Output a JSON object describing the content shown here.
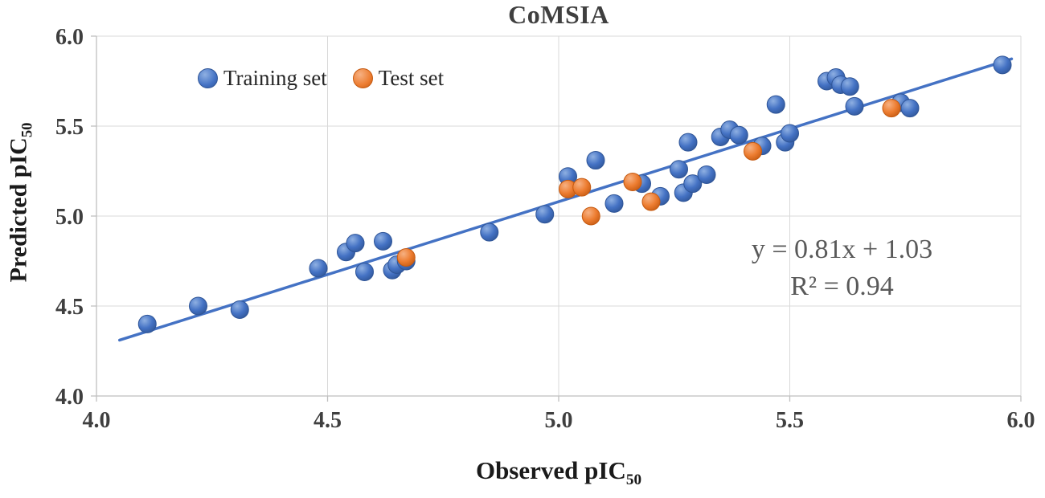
{
  "chart": {
    "title": "CoMSIA",
    "xlabel_main": "Observed pIC",
    "xlabel_sub": "50",
    "ylabel_main": "Predicted pIC",
    "ylabel_sub": "50",
    "legend": {
      "training": "Training set",
      "test": "Test set"
    },
    "equation_line1": "y = 0.81x + 1.03",
    "equation_line2": "R² = 0.94"
  },
  "chart_data": {
    "type": "scatter",
    "title": "CoMSIA",
    "xlabel": "Observed pIC50",
    "ylabel": "Predicted pIC50",
    "xlim": [
      4.0,
      6.0
    ],
    "ylim": [
      4.0,
      6.0
    ],
    "xticks": [
      4.0,
      4.5,
      5.0,
      5.5,
      6.0
    ],
    "yticks": [
      4.0,
      4.5,
      5.0,
      5.5,
      6.0
    ],
    "grid": true,
    "legend_position": "inside-top-left",
    "colors": {
      "training": "#4472C4",
      "test": "#ED7D31",
      "trendline": "#4472C4",
      "gridline": "#D9D9D9",
      "axisline": "#BFBFBF",
      "annotation": "#595959"
    },
    "series": [
      {
        "name": "Training set",
        "color": "#4472C4",
        "points": [
          [
            4.11,
            4.4
          ],
          [
            4.22,
            4.5
          ],
          [
            4.31,
            4.48
          ],
          [
            4.48,
            4.71
          ],
          [
            4.54,
            4.8
          ],
          [
            4.56,
            4.85
          ],
          [
            4.58,
            4.69
          ],
          [
            4.62,
            4.86
          ],
          [
            4.64,
            4.7
          ],
          [
            4.65,
            4.73
          ],
          [
            4.67,
            4.75
          ],
          [
            4.85,
            4.91
          ],
          [
            4.97,
            5.01
          ],
          [
            5.02,
            5.22
          ],
          [
            5.08,
            5.31
          ],
          [
            5.12,
            5.07
          ],
          [
            5.18,
            5.18
          ],
          [
            5.22,
            5.11
          ],
          [
            5.26,
            5.26
          ],
          [
            5.27,
            5.13
          ],
          [
            5.28,
            5.41
          ],
          [
            5.29,
            5.18
          ],
          [
            5.32,
            5.23
          ],
          [
            5.35,
            5.44
          ],
          [
            5.37,
            5.48
          ],
          [
            5.39,
            5.45
          ],
          [
            5.44,
            5.39
          ],
          [
            5.47,
            5.62
          ],
          [
            5.49,
            5.41
          ],
          [
            5.5,
            5.46
          ],
          [
            5.58,
            5.75
          ],
          [
            5.6,
            5.77
          ],
          [
            5.61,
            5.73
          ],
          [
            5.63,
            5.72
          ],
          [
            5.64,
            5.61
          ],
          [
            5.74,
            5.63
          ],
          [
            5.76,
            5.6
          ],
          [
            5.96,
            5.84
          ]
        ]
      },
      {
        "name": "Test set",
        "color": "#ED7D31",
        "points": [
          [
            4.67,
            4.77
          ],
          [
            5.02,
            5.15
          ],
          [
            5.05,
            5.16
          ],
          [
            5.07,
            5.0
          ],
          [
            5.16,
            5.19
          ],
          [
            5.2,
            5.08
          ],
          [
            5.42,
            5.36
          ],
          [
            5.72,
            5.6
          ]
        ]
      }
    ],
    "trendline": {
      "slope": 0.81,
      "intercept": 1.03,
      "r2": 0.94,
      "equation": "y = 0.81x + 1.03",
      "r2_label": "R² = 0.94",
      "x_range": [
        4.05,
        5.98
      ]
    }
  }
}
